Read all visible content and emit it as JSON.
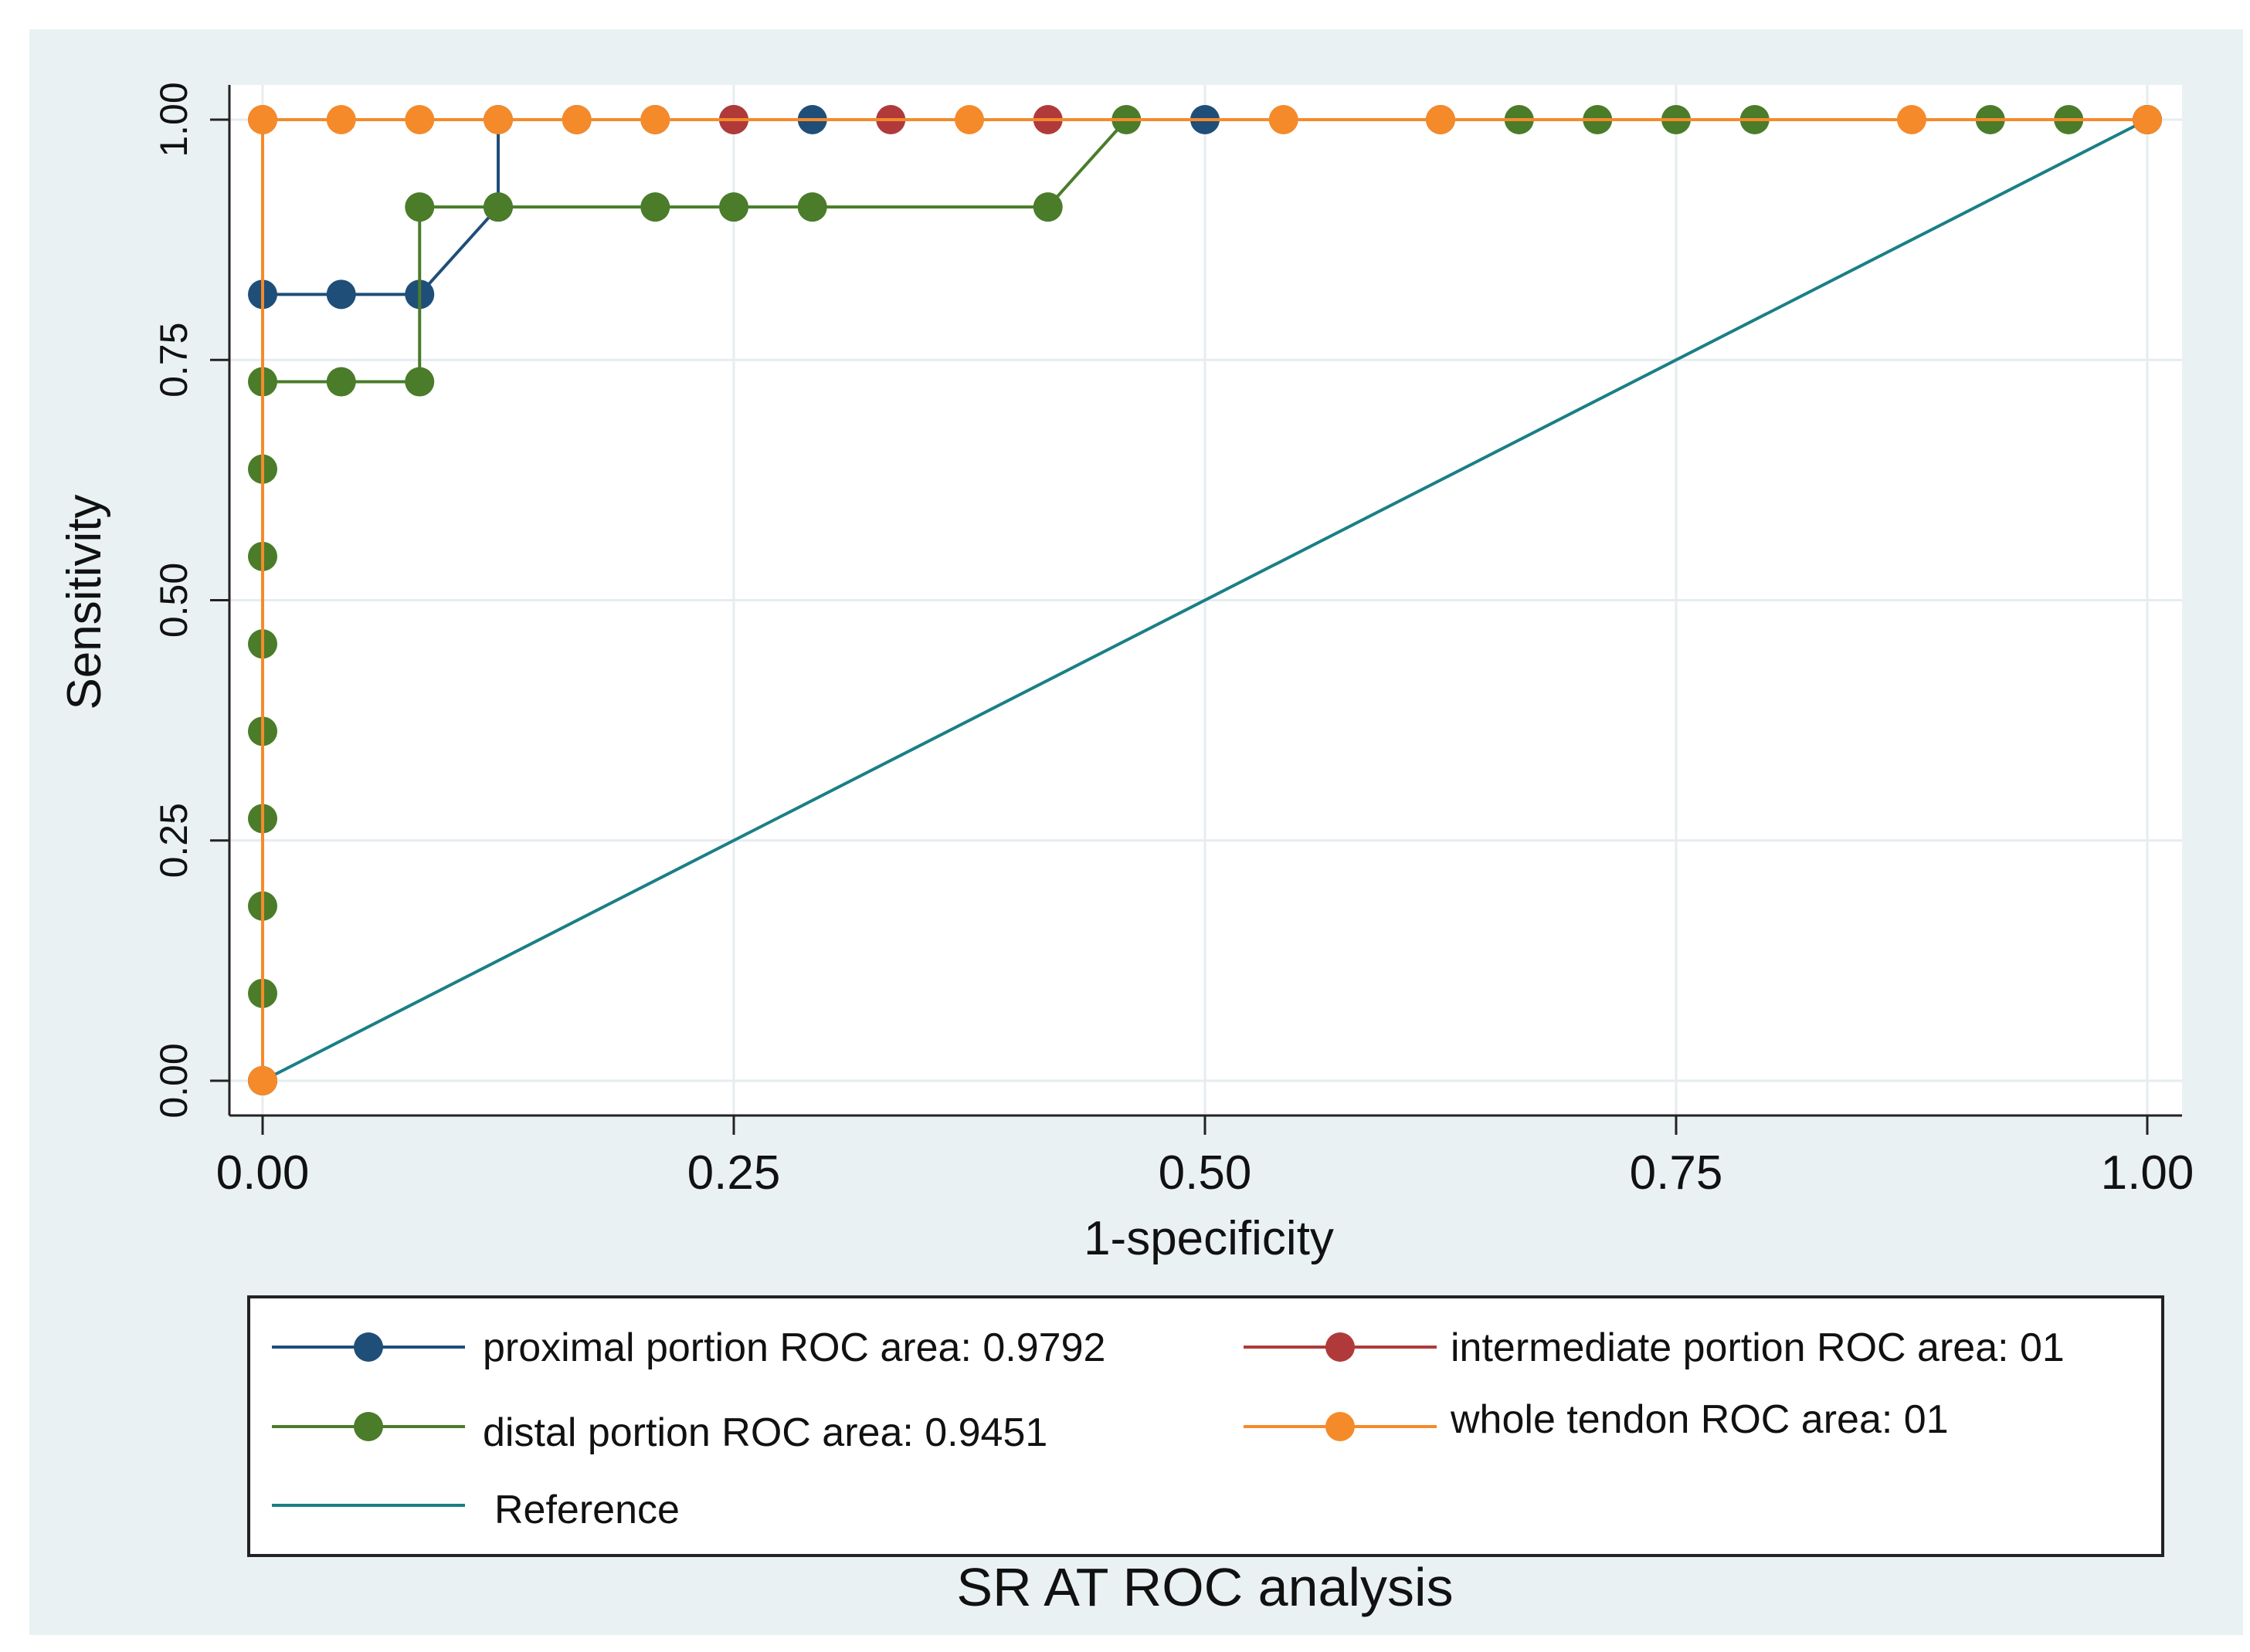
{
  "chart_data": {
    "type": "line",
    "title": "SR AT ROC analysis",
    "xlabel": "1-specificity",
    "ylabel": "Sensitivity",
    "xlim": [
      0,
      1
    ],
    "ylim": [
      0,
      1
    ],
    "grid": true,
    "legend_position": "bottom",
    "x_ticks": [
      "0.00",
      "0.25",
      "0.50",
      "0.75",
      "1.00"
    ],
    "y_ticks": [
      "0.00",
      "0.25",
      "0.50",
      "0.75",
      "1.00"
    ],
    "series": [
      {
        "key": "proximal",
        "name": "proximal portion ROC area: 0.9792",
        "color": "#1f4e79",
        "points": [
          [
            0,
            0
          ],
          [
            0,
            0.8182
          ],
          [
            0.0417,
            0.8182
          ],
          [
            0.0833,
            0.8182
          ],
          [
            0.125,
            0.9091
          ],
          [
            0.125,
            1
          ],
          [
            0.1667,
            1
          ],
          [
            0.2083,
            1
          ],
          [
            0.25,
            1
          ],
          [
            0.2917,
            1
          ],
          [
            0.5,
            1
          ],
          [
            1,
            1
          ]
        ]
      },
      {
        "key": "intermediate",
        "name": "intermediate portion ROC area: 01",
        "color": "#b03a3a",
        "points": [
          [
            0,
            0
          ],
          [
            0,
            1
          ],
          [
            0.25,
            1
          ],
          [
            0.3333,
            1
          ],
          [
            0.4167,
            1
          ],
          [
            1,
            1
          ]
        ]
      },
      {
        "key": "distal",
        "name": "distal portion ROC area: 0.9451",
        "color": "#4a7c2a",
        "points": [
          [
            0,
            0
          ],
          [
            0,
            0.0909
          ],
          [
            0,
            0.1818
          ],
          [
            0,
            0.2727
          ],
          [
            0,
            0.3636
          ],
          [
            0,
            0.4545
          ],
          [
            0,
            0.5455
          ],
          [
            0,
            0.6364
          ],
          [
            0,
            0.7273
          ],
          [
            0.0417,
            0.7273
          ],
          [
            0.0833,
            0.7273
          ],
          [
            0.0833,
            0.9091
          ],
          [
            0.125,
            0.9091
          ],
          [
            0.2083,
            0.9091
          ],
          [
            0.25,
            0.9091
          ],
          [
            0.2917,
            0.9091
          ],
          [
            0.4167,
            0.9091
          ],
          [
            0.4583,
            1
          ],
          [
            0.625,
            1
          ],
          [
            0.6667,
            1
          ],
          [
            0.7083,
            1
          ],
          [
            0.75,
            1
          ],
          [
            0.7917,
            1
          ],
          [
            0.9167,
            1
          ],
          [
            0.9583,
            1
          ],
          [
            1,
            1
          ]
        ]
      },
      {
        "key": "whole",
        "name": "whole tendon ROC area: 01",
        "color": "#f58a2a",
        "points": [
          [
            0,
            0
          ],
          [
            0,
            1
          ],
          [
            0.0417,
            1
          ],
          [
            0.0833,
            1
          ],
          [
            0.125,
            1
          ],
          [
            0.1667,
            1
          ],
          [
            0.2083,
            1
          ],
          [
            0.375,
            1
          ],
          [
            0.5417,
            1
          ],
          [
            0.625,
            1
          ],
          [
            0.875,
            1
          ],
          [
            1,
            1
          ]
        ]
      }
    ],
    "reference": {
      "name": "Reference",
      "color": "#1a7f86",
      "points": [
        [
          0,
          0
        ],
        [
          1,
          1
        ]
      ]
    }
  }
}
